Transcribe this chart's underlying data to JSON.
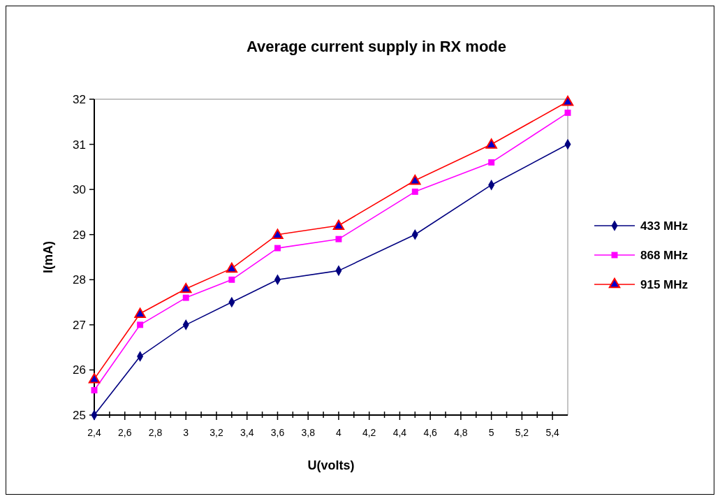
{
  "chart_data": {
    "type": "line",
    "title": "Average current supply in RX mode",
    "xlabel": "U(volts)",
    "ylabel": "I(mA)",
    "x": [
      2.4,
      2.7,
      3,
      3.3,
      3.6,
      4,
      4.5,
      5,
      5.5
    ],
    "series": [
      {
        "name": "433 MHz",
        "color": "#000080",
        "marker": "diamond",
        "values": [
          25,
          26.3,
          27,
          27.5,
          28,
          28.2,
          29,
          30.1,
          31
        ]
      },
      {
        "name": "868 MHz",
        "color": "#ff00ff",
        "marker": "square",
        "values": [
          25.55,
          27,
          27.6,
          28,
          28.7,
          28.9,
          29.95,
          30.6,
          31.7
        ]
      },
      {
        "name": "915 MHz",
        "color": "#ff0000",
        "marker": "triangle",
        "values": [
          25.8,
          27.25,
          27.8,
          28.25,
          29,
          29.2,
          30.2,
          31,
          31.95
        ]
      }
    ],
    "xlim": [
      2.4,
      5.5
    ],
    "xticks": [
      {
        "value": 2.4,
        "label": "2,4"
      },
      {
        "value": 2.5,
        "label": null
      },
      {
        "value": 2.6,
        "label": "2,6"
      },
      {
        "value": 2.7,
        "label": null
      },
      {
        "value": 2.8,
        "label": "2,8"
      },
      {
        "value": 2.9,
        "label": null
      },
      3,
      {
        "value": 3.1,
        "label": null
      },
      {
        "value": 3.2,
        "label": "3,2"
      },
      {
        "value": 3.3,
        "label": null
      },
      {
        "value": 3.4,
        "label": "3,4"
      },
      {
        "value": 3.5,
        "label": null
      },
      {
        "value": 3.6,
        "label": "3,6"
      },
      {
        "value": 3.7,
        "label": null
      },
      {
        "value": 3.8,
        "label": "3,8"
      },
      {
        "value": 3.9,
        "label": null
      },
      4,
      {
        "value": 4.1,
        "label": null
      },
      {
        "value": 4.2,
        "label": "4,2"
      },
      {
        "value": 4.3,
        "label": null
      },
      {
        "value": 4.4,
        "label": "4,4"
      },
      {
        "value": 4.5,
        "label": null
      },
      {
        "value": 4.6,
        "label": "4,6"
      },
      {
        "value": 4.7,
        "label": null
      },
      {
        "value": 4.8,
        "label": "4,8"
      },
      {
        "value": 4.9,
        "label": null
      },
      5,
      {
        "value": 5.1,
        "label": null
      },
      {
        "value": 5.2,
        "label": "5,2"
      },
      {
        "value": 5.3,
        "label": null
      },
      {
        "value": 5.4,
        "label": "5,4"
      }
    ],
    "ylim": [
      25,
      32
    ],
    "yticks": [
      25,
      26,
      27,
      28,
      29,
      30,
      31,
      32
    ],
    "grid": false,
    "legend": "right",
    "line_style": "solid"
  }
}
